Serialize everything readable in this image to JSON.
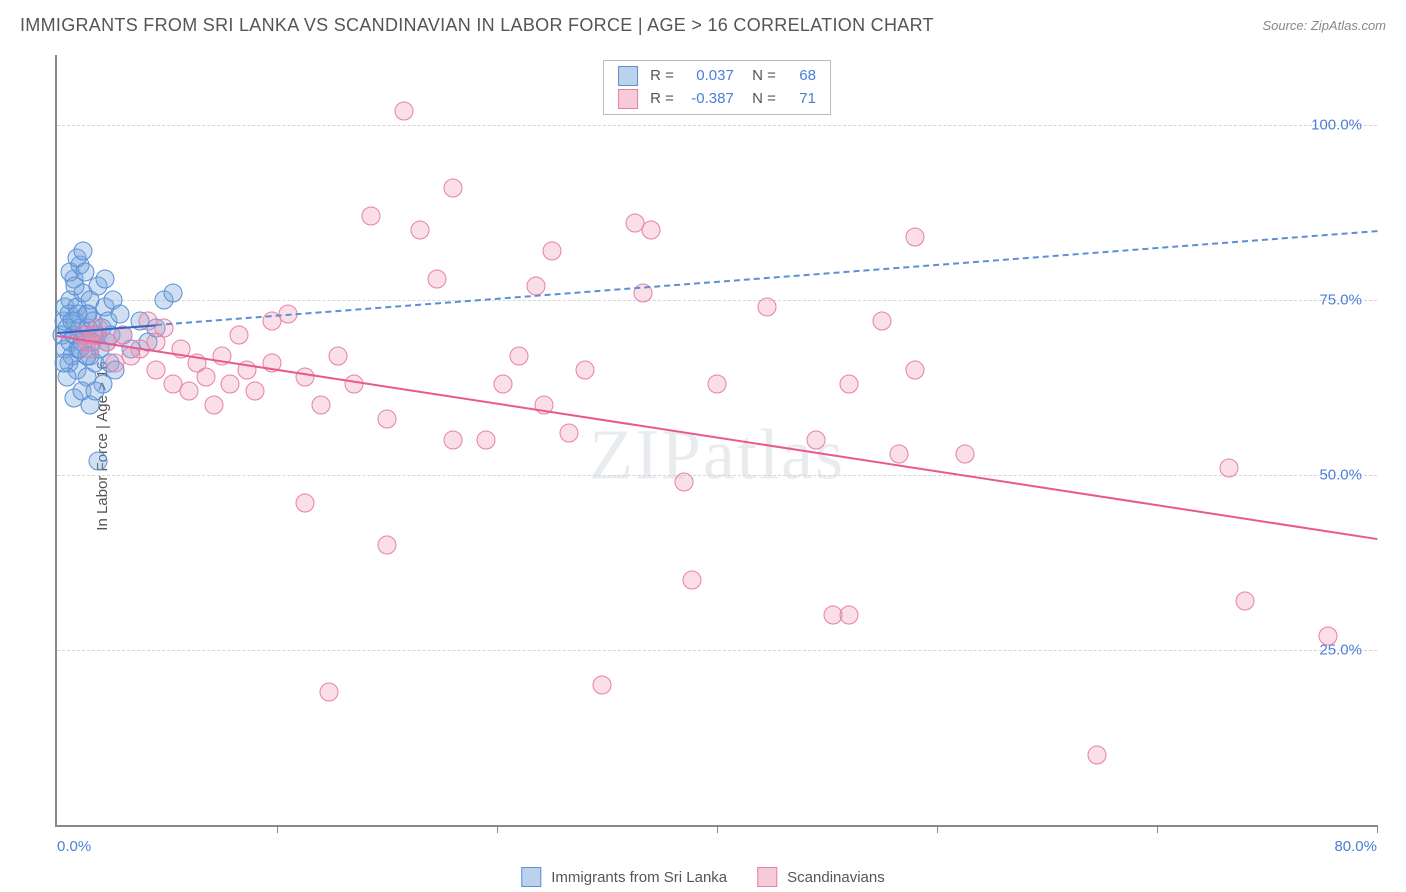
{
  "title": "IMMIGRANTS FROM SRI LANKA VS SCANDINAVIAN IN LABOR FORCE | AGE > 16 CORRELATION CHART",
  "source": "Source: ZipAtlas.com",
  "ylabel": "In Labor Force | Age > 16",
  "watermark": "ZIPatlas",
  "chart": {
    "type": "scatter",
    "xlim": [
      0,
      80
    ],
    "ylim": [
      0,
      110
    ],
    "xtick_labels": [
      "0.0%",
      "80.0%"
    ],
    "ytick_positions": [
      25,
      50,
      75,
      100
    ],
    "ytick_labels": [
      "25.0%",
      "50.0%",
      "75.0%",
      "100.0%"
    ],
    "x_grid_positions": [
      13.33,
      26.67,
      40,
      53.33,
      66.67,
      80
    ],
    "background_color": "#ffffff",
    "grid_color": "#d5d5d5",
    "axis_color": "#888888",
    "tick_label_color": "#4a7fd8",
    "marker_size": 19,
    "series": [
      {
        "name": "Immigrants from Sri Lanka",
        "color_fill": "rgba(120,165,220,0.35)",
        "color_border": "#5b8fd6",
        "R": "0.037",
        "N": "68",
        "trend": {
          "x1": 0,
          "y1": 70.5,
          "x2": 80,
          "y2": 85,
          "dash_until_x": 6,
          "solid_color": "#2f66c4",
          "dash_color": "#5b8fd6"
        },
        "points": [
          [
            0.3,
            70
          ],
          [
            0.4,
            72
          ],
          [
            0.5,
            68
          ],
          [
            0.5,
            74
          ],
          [
            0.6,
            71
          ],
          [
            0.7,
            66
          ],
          [
            0.7,
            73
          ],
          [
            0.8,
            69
          ],
          [
            0.8,
            75
          ],
          [
            0.9,
            67
          ],
          [
            1.0,
            78
          ],
          [
            1.0,
            70
          ],
          [
            1.1,
            72
          ],
          [
            1.2,
            65
          ],
          [
            1.2,
            74
          ],
          [
            1.3,
            68
          ],
          [
            1.4,
            71
          ],
          [
            1.4,
            80
          ],
          [
            1.5,
            69
          ],
          [
            1.6,
            76
          ],
          [
            1.7,
            70
          ],
          [
            1.8,
            73
          ],
          [
            1.8,
            64
          ],
          [
            1.9,
            71
          ],
          [
            2.0,
            67
          ],
          [
            2.0,
            75
          ],
          [
            2.1,
            69
          ],
          [
            2.2,
            72
          ],
          [
            2.3,
            66
          ],
          [
            2.4,
            70
          ],
          [
            2.5,
            77
          ],
          [
            2.6,
            68
          ],
          [
            2.7,
            71
          ],
          [
            2.8,
            63
          ],
          [
            2.9,
            74
          ],
          [
            3.0,
            69
          ],
          [
            3.1,
            72
          ],
          [
            3.2,
            66
          ],
          [
            3.3,
            70
          ],
          [
            3.4,
            75
          ],
          [
            1.0,
            61
          ],
          [
            1.5,
            62
          ],
          [
            2.0,
            60
          ],
          [
            0.8,
            79
          ],
          [
            1.2,
            81
          ],
          [
            1.6,
            82
          ],
          [
            4.0,
            70
          ],
          [
            4.5,
            68
          ],
          [
            5.0,
            72
          ],
          [
            5.5,
            69
          ],
          [
            6.0,
            71
          ],
          [
            3.5,
            65
          ],
          [
            3.8,
            73
          ],
          [
            0.6,
            64
          ],
          [
            1.1,
            77
          ],
          [
            1.7,
            79
          ],
          [
            2.3,
            62
          ],
          [
            2.9,
            78
          ],
          [
            0.4,
            66
          ],
          [
            0.9,
            72
          ],
          [
            1.4,
            68
          ],
          [
            1.9,
            73
          ],
          [
            6.5,
            75
          ],
          [
            7.0,
            76
          ],
          [
            2.5,
            52
          ],
          [
            1.3,
            73
          ],
          [
            1.8,
            67
          ],
          [
            2.2,
            70
          ]
        ]
      },
      {
        "name": "Scandinavians",
        "color_fill": "rgba(240,150,180,0.30)",
        "color_border": "#e87fa8",
        "R": "-0.387",
        "N": "71",
        "trend": {
          "x1": 0,
          "y1": 70,
          "x2": 80,
          "y2": 41,
          "solid_color": "#e85a8f"
        },
        "points": [
          [
            1.5,
            70
          ],
          [
            2.0,
            68
          ],
          [
            2.5,
            71
          ],
          [
            3.0,
            69
          ],
          [
            4.0,
            70
          ],
          [
            5.0,
            68
          ],
          [
            5.5,
            72
          ],
          [
            6.0,
            65
          ],
          [
            6.5,
            71
          ],
          [
            7.0,
            63
          ],
          [
            7.5,
            68
          ],
          [
            8.0,
            62
          ],
          [
            8.5,
            66
          ],
          [
            9.0,
            64
          ],
          [
            9.5,
            60
          ],
          [
            10.0,
            67
          ],
          [
            10.5,
            63
          ],
          [
            11.0,
            70
          ],
          [
            11.5,
            65
          ],
          [
            12.0,
            62
          ],
          [
            13.0,
            66
          ],
          [
            14.0,
            73
          ],
          [
            15.0,
            64
          ],
          [
            16.0,
            60
          ],
          [
            17.0,
            67
          ],
          [
            18.0,
            63
          ],
          [
            19.0,
            87
          ],
          [
            20.0,
            58
          ],
          [
            21.0,
            102
          ],
          [
            22.0,
            85
          ],
          [
            23.0,
            78
          ],
          [
            24.0,
            91
          ],
          [
            26.0,
            55
          ],
          [
            27.0,
            63
          ],
          [
            28.0,
            67
          ],
          [
            29.0,
            77
          ],
          [
            29.5,
            60
          ],
          [
            30.0,
            82
          ],
          [
            31.0,
            56
          ],
          [
            32.0,
            65
          ],
          [
            35.0,
            86
          ],
          [
            35.5,
            76
          ],
          [
            36.0,
            85
          ],
          [
            38.0,
            49
          ],
          [
            38.5,
            35
          ],
          [
            40.0,
            63
          ],
          [
            43.0,
            74
          ],
          [
            46.0,
            55
          ],
          [
            47.0,
            30
          ],
          [
            48.0,
            63
          ],
          [
            50.0,
            72
          ],
          [
            51.0,
            53
          ],
          [
            52.0,
            84
          ],
          [
            15.0,
            46
          ],
          [
            16.5,
            19
          ],
          [
            20.0,
            40
          ],
          [
            24.0,
            55
          ],
          [
            33.0,
            20
          ],
          [
            48.0,
            30
          ],
          [
            52.0,
            65
          ],
          [
            55.0,
            53
          ],
          [
            63.0,
            10
          ],
          [
            71.0,
            51
          ],
          [
            72.0,
            32
          ],
          [
            77.0,
            27
          ],
          [
            13.0,
            72
          ],
          [
            6.0,
            69
          ],
          [
            4.5,
            67
          ],
          [
            3.5,
            66
          ],
          [
            2.2,
            70
          ],
          [
            1.8,
            69
          ]
        ]
      }
    ]
  },
  "legend": {
    "items": [
      {
        "label": "Immigrants from Sri Lanka",
        "swatch": "blue"
      },
      {
        "label": "Scandinavians",
        "swatch": "pink"
      }
    ]
  }
}
